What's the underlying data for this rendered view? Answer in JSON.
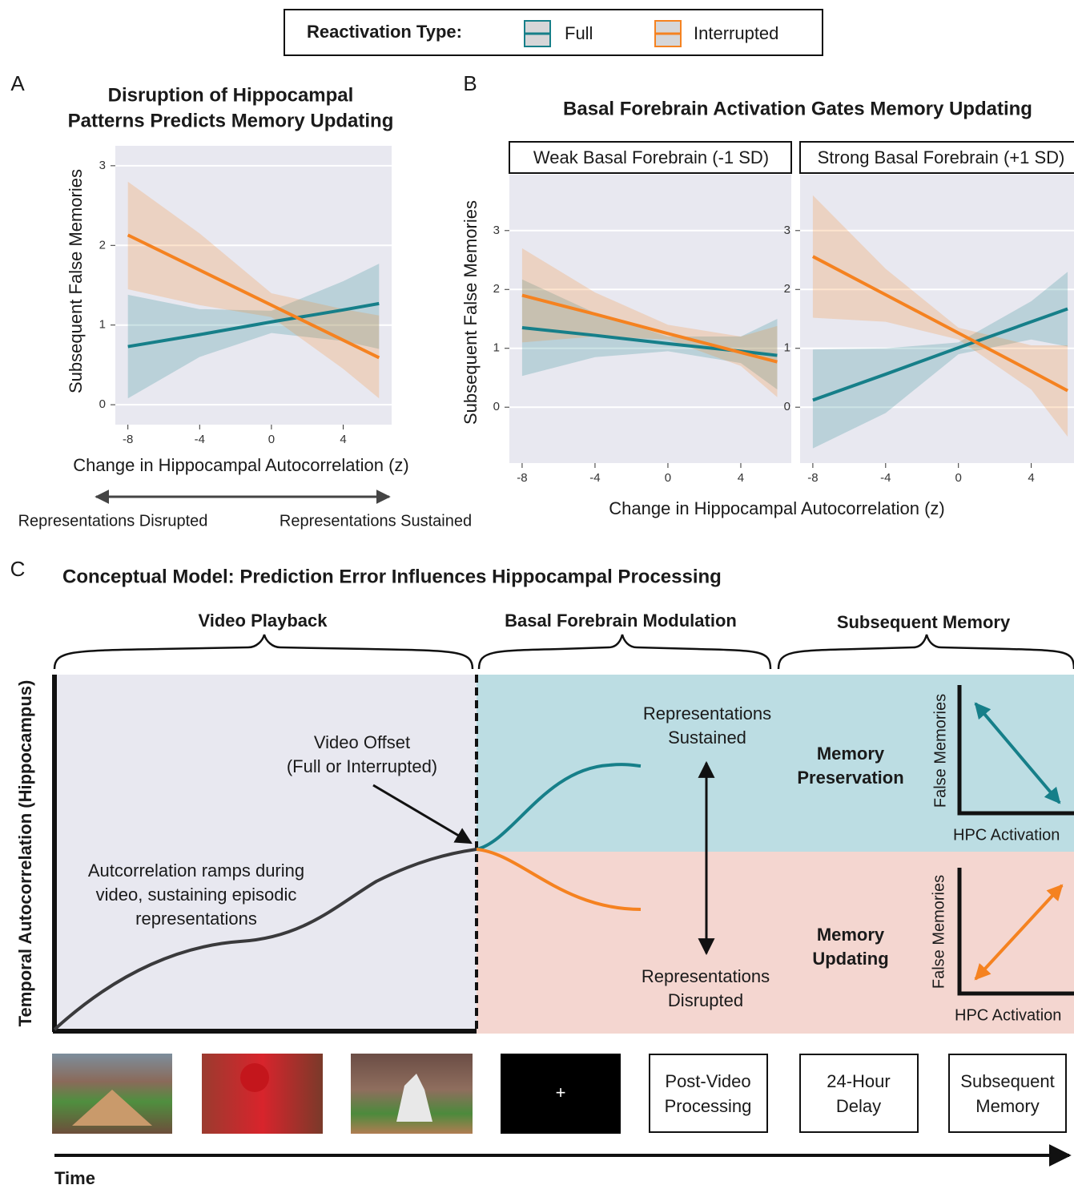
{
  "legend": {
    "title": "Reactivation Type:"
  },
  "panel_labels": [
    "A",
    "B",
    "C"
  ],
  "panel_a": {
    "arrow_labels": [
      "Representations Disrupted",
      "Representations Sustained"
    ]
  },
  "panel_b": {
    "title": "Basal Forebrain Activation Gates Memory Updating",
    "xlabel": "Change in Hippocampal Autocorrelation (z)",
    "ylabel": "Subsequent False Memories"
  },
  "chart_data": [
    {
      "type": "line",
      "title": [
        "Disruption of Hippocampal",
        "Patterns Predicts Memory Updating"
      ],
      "xlabel": "Change in Hippocampal Autocorrelation (z)",
      "ylabel": "Subsequent False Memories",
      "x": [
        -8,
        -4,
        0,
        4,
        6
      ],
      "xlim": [
        -8.7,
        6.7
      ],
      "ylim": [
        -0.25,
        3.25
      ],
      "xticks": [
        -8,
        -4,
        0,
        4
      ],
      "yticks": [
        0,
        1,
        2,
        3
      ],
      "grid": true,
      "series": [
        {
          "name": "Full",
          "color": "#167f89",
          "values": [
            0.73,
            0.88,
            1.04,
            1.19,
            1.27
          ],
          "lower": [
            0.08,
            0.6,
            0.9,
            0.8,
            0.7
          ],
          "upper": [
            1.38,
            1.2,
            1.18,
            1.55,
            1.77
          ]
        },
        {
          "name": "Interrupted",
          "color": "#f58220",
          "values": [
            2.13,
            1.69,
            1.25,
            0.81,
            0.59
          ],
          "lower": [
            1.45,
            1.25,
            1.1,
            0.45,
            0.08
          ],
          "upper": [
            2.8,
            2.15,
            1.4,
            1.2,
            1.12
          ]
        }
      ]
    },
    {
      "type": "line",
      "title": "Weak Basal Forebrain (-1 SD)",
      "x": [
        -8,
        -4,
        0,
        4,
        6
      ],
      "xlim": [
        -8.7,
        6.77
      ],
      "ylim": [
        -0.95,
        3.95
      ],
      "xticks": [
        -8,
        -4,
        0,
        4
      ],
      "yticks": [
        0,
        1,
        2,
        3
      ],
      "grid": true,
      "series": [
        {
          "name": "Full",
          "color": "#167f89",
          "values": [
            1.35,
            1.22,
            1.08,
            0.95,
            0.88
          ],
          "lower": [
            0.53,
            0.85,
            0.95,
            0.75,
            0.3
          ],
          "upper": [
            2.17,
            1.6,
            1.2,
            1.2,
            1.5
          ]
        },
        {
          "name": "Interrupted",
          "color": "#f58220",
          "values": [
            1.9,
            1.58,
            1.25,
            0.93,
            0.77
          ],
          "lower": [
            1.1,
            1.2,
            1.15,
            0.7,
            0.17
          ],
          "upper": [
            2.7,
            1.95,
            1.4,
            1.2,
            1.38
          ]
        }
      ]
    },
    {
      "type": "line",
      "title": "Strong Basal Forebrain (+1 SD)",
      "x": [
        -8,
        -4,
        0,
        4,
        6
      ],
      "xlim": [
        -8.7,
        6.35
      ],
      "ylim": [
        -0.95,
        3.95
      ],
      "xticks": [
        -8,
        -4,
        0,
        4
      ],
      "yticks": [
        0,
        1,
        2,
        3
      ],
      "grid": true,
      "series": [
        {
          "name": "Full",
          "color": "#167f89",
          "values": [
            0.12,
            0.56,
            1.01,
            1.45,
            1.67
          ],
          "lower": [
            -0.7,
            -0.1,
            0.9,
            1.15,
            1.03
          ],
          "upper": [
            0.98,
            1.0,
            1.1,
            1.8,
            2.3
          ]
        },
        {
          "name": "Interrupted",
          "color": "#f58220",
          "values": [
            2.56,
            1.91,
            1.26,
            0.61,
            0.28
          ],
          "lower": [
            1.52,
            1.45,
            1.15,
            0.3,
            -0.5
          ],
          "upper": [
            3.6,
            2.35,
            1.35,
            1.05,
            1.05
          ]
        }
      ]
    }
  ],
  "diagram": {
    "title": "Conceptual Model:  Prediction Error Influences Hippocampal Processing",
    "sections": [
      "Video Playback",
      "Basal Forebrain Modulation",
      "Subsequent Memory"
    ],
    "y_axis": "Temporal Autocorrelation (Hippocampus)",
    "x_axis": "Time",
    "offset_note": [
      "Video Offset",
      "(Full or Interrupted)"
    ],
    "ramp_note": [
      "Autcorrelation ramps during",
      "video, sustaining episodic",
      "representations"
    ],
    "sustained": [
      "Representations",
      "Sustained"
    ],
    "disrupted": [
      "Representations",
      "Disrupted"
    ],
    "preservation": [
      "Memory",
      "Preservation"
    ],
    "updating": [
      "Memory",
      "Updating"
    ],
    "mini_ylabel": "False Memories",
    "mini_xlabel": "HPC Activation",
    "fixation": "+",
    "boxes": [
      [
        "Post-Video",
        "Processing"
      ],
      [
        "24-Hour",
        "Delay"
      ],
      [
        "Subsequent",
        "Memory"
      ]
    ]
  }
}
